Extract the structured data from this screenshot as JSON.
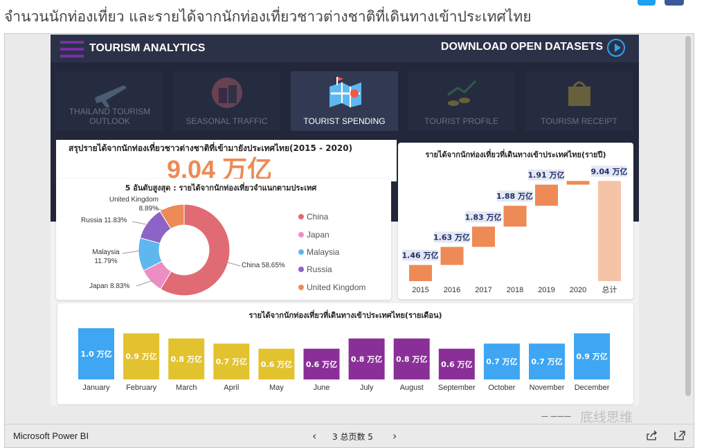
{
  "article": {
    "title": "จำนวนนักท่องเที่ยว และรายได้จากนักท่องเที่ยวชาวต่างชาติที่เดินทางเข้าประเทศไทย"
  },
  "report": {
    "brand": "TOURISM ANALYTICS",
    "download": "DOWNLOAD OPEN DATASETS",
    "tabs": [
      {
        "label": "THAILAND TOURISM OUTLOOK",
        "icon": "airplane-icon",
        "active": false
      },
      {
        "label": "SEASONAL TRAFFIC",
        "icon": "luggage-icon",
        "active": false
      },
      {
        "label": "TOURIST SPENDING",
        "icon": "map-icon",
        "active": true
      },
      {
        "label": "TOURIST PROFILE",
        "icon": "coins-growth-icon",
        "active": false
      },
      {
        "label": "TOURISM RECEIPT",
        "icon": "shopping-bag-icon",
        "active": false
      }
    ],
    "summary": {
      "title": "สรุปรายได้จากนักท่องเที่ยวชาวต่างชาติที่เข้ามายังประเทศไทย(2015 - 2020)",
      "value": "9.04 万亿"
    }
  },
  "chart_data": [
    {
      "type": "pie",
      "title": "5 อันดับสูงสุด : รายได้จากนักท่องเที่ยวจำแนกตามประเทศ",
      "categories": [
        "China",
        "Japan",
        "Malaysia",
        "Russia",
        "United Kingdom"
      ],
      "values": [
        58.65,
        8.83,
        11.79,
        11.83,
        8.89
      ],
      "data_labels": [
        "China 58.65%",
        "Japan 8.83%",
        "Malaysia 11.79%",
        "Russia 11.83%",
        "United Kingdom 8.89%"
      ],
      "colors": [
        "#e06b74",
        "#ec8ec4",
        "#5fb7f0",
        "#8e63c8",
        "#ee8a55"
      ],
      "donut": true,
      "legend": "right"
    },
    {
      "type": "bar",
      "subtype": "waterfall",
      "title": "รายได้จากนักท่องเที่ยวที่เดินทางเข้าประเทศไทย(รายปี)",
      "categories": [
        "2015",
        "2016",
        "2017",
        "2018",
        "2019",
        "2020",
        "总计"
      ],
      "values": [
        1.46,
        1.63,
        1.83,
        1.88,
        1.91,
        0.33,
        9.04
      ],
      "data_labels": [
        "1.46 万亿",
        "1.63 万亿",
        "1.83 万亿",
        "1.88 万亿",
        "1.91 万亿",
        "",
        "9.04 万亿"
      ],
      "colors": {
        "step": "#ee8a55",
        "total": "#f5c4a8"
      },
      "ylim": [
        0,
        9.5
      ]
    },
    {
      "type": "bar",
      "title": "รายได้จากนักท่องเที่ยวที่เดินทางเข้าประเทศไทย(รายเดือน)",
      "categories": [
        "January",
        "February",
        "March",
        "April",
        "May",
        "June",
        "July",
        "August",
        "September",
        "October",
        "November",
        "December"
      ],
      "values": [
        1.0,
        0.9,
        0.8,
        0.7,
        0.6,
        0.6,
        0.8,
        0.8,
        0.6,
        0.7,
        0.7,
        0.9
      ],
      "data_labels": [
        "1.0 万亿",
        "0.9 万亿",
        "0.8 万亿",
        "0.7 万亿",
        "0.6 万亿",
        "0.6 万亿",
        "0.8 万亿",
        "0.8 万亿",
        "0.6 万亿",
        "0.7 万亿",
        "0.7 万亿",
        "0.9 万亿"
      ],
      "colors": [
        "#3ea6f2",
        "#e3c22f",
        "#e3c22f",
        "#e3c22f",
        "#e3c22f",
        "#8a2f98",
        "#8a2f98",
        "#8a2f98",
        "#8a2f98",
        "#3ea6f2",
        "#3ea6f2",
        "#3ea6f2"
      ],
      "ylim": [
        0,
        1.0
      ]
    }
  ],
  "bottombar": {
    "brand": "Microsoft Power BI",
    "pager": "3 总页数 5"
  },
  "watermark": "底线思维"
}
